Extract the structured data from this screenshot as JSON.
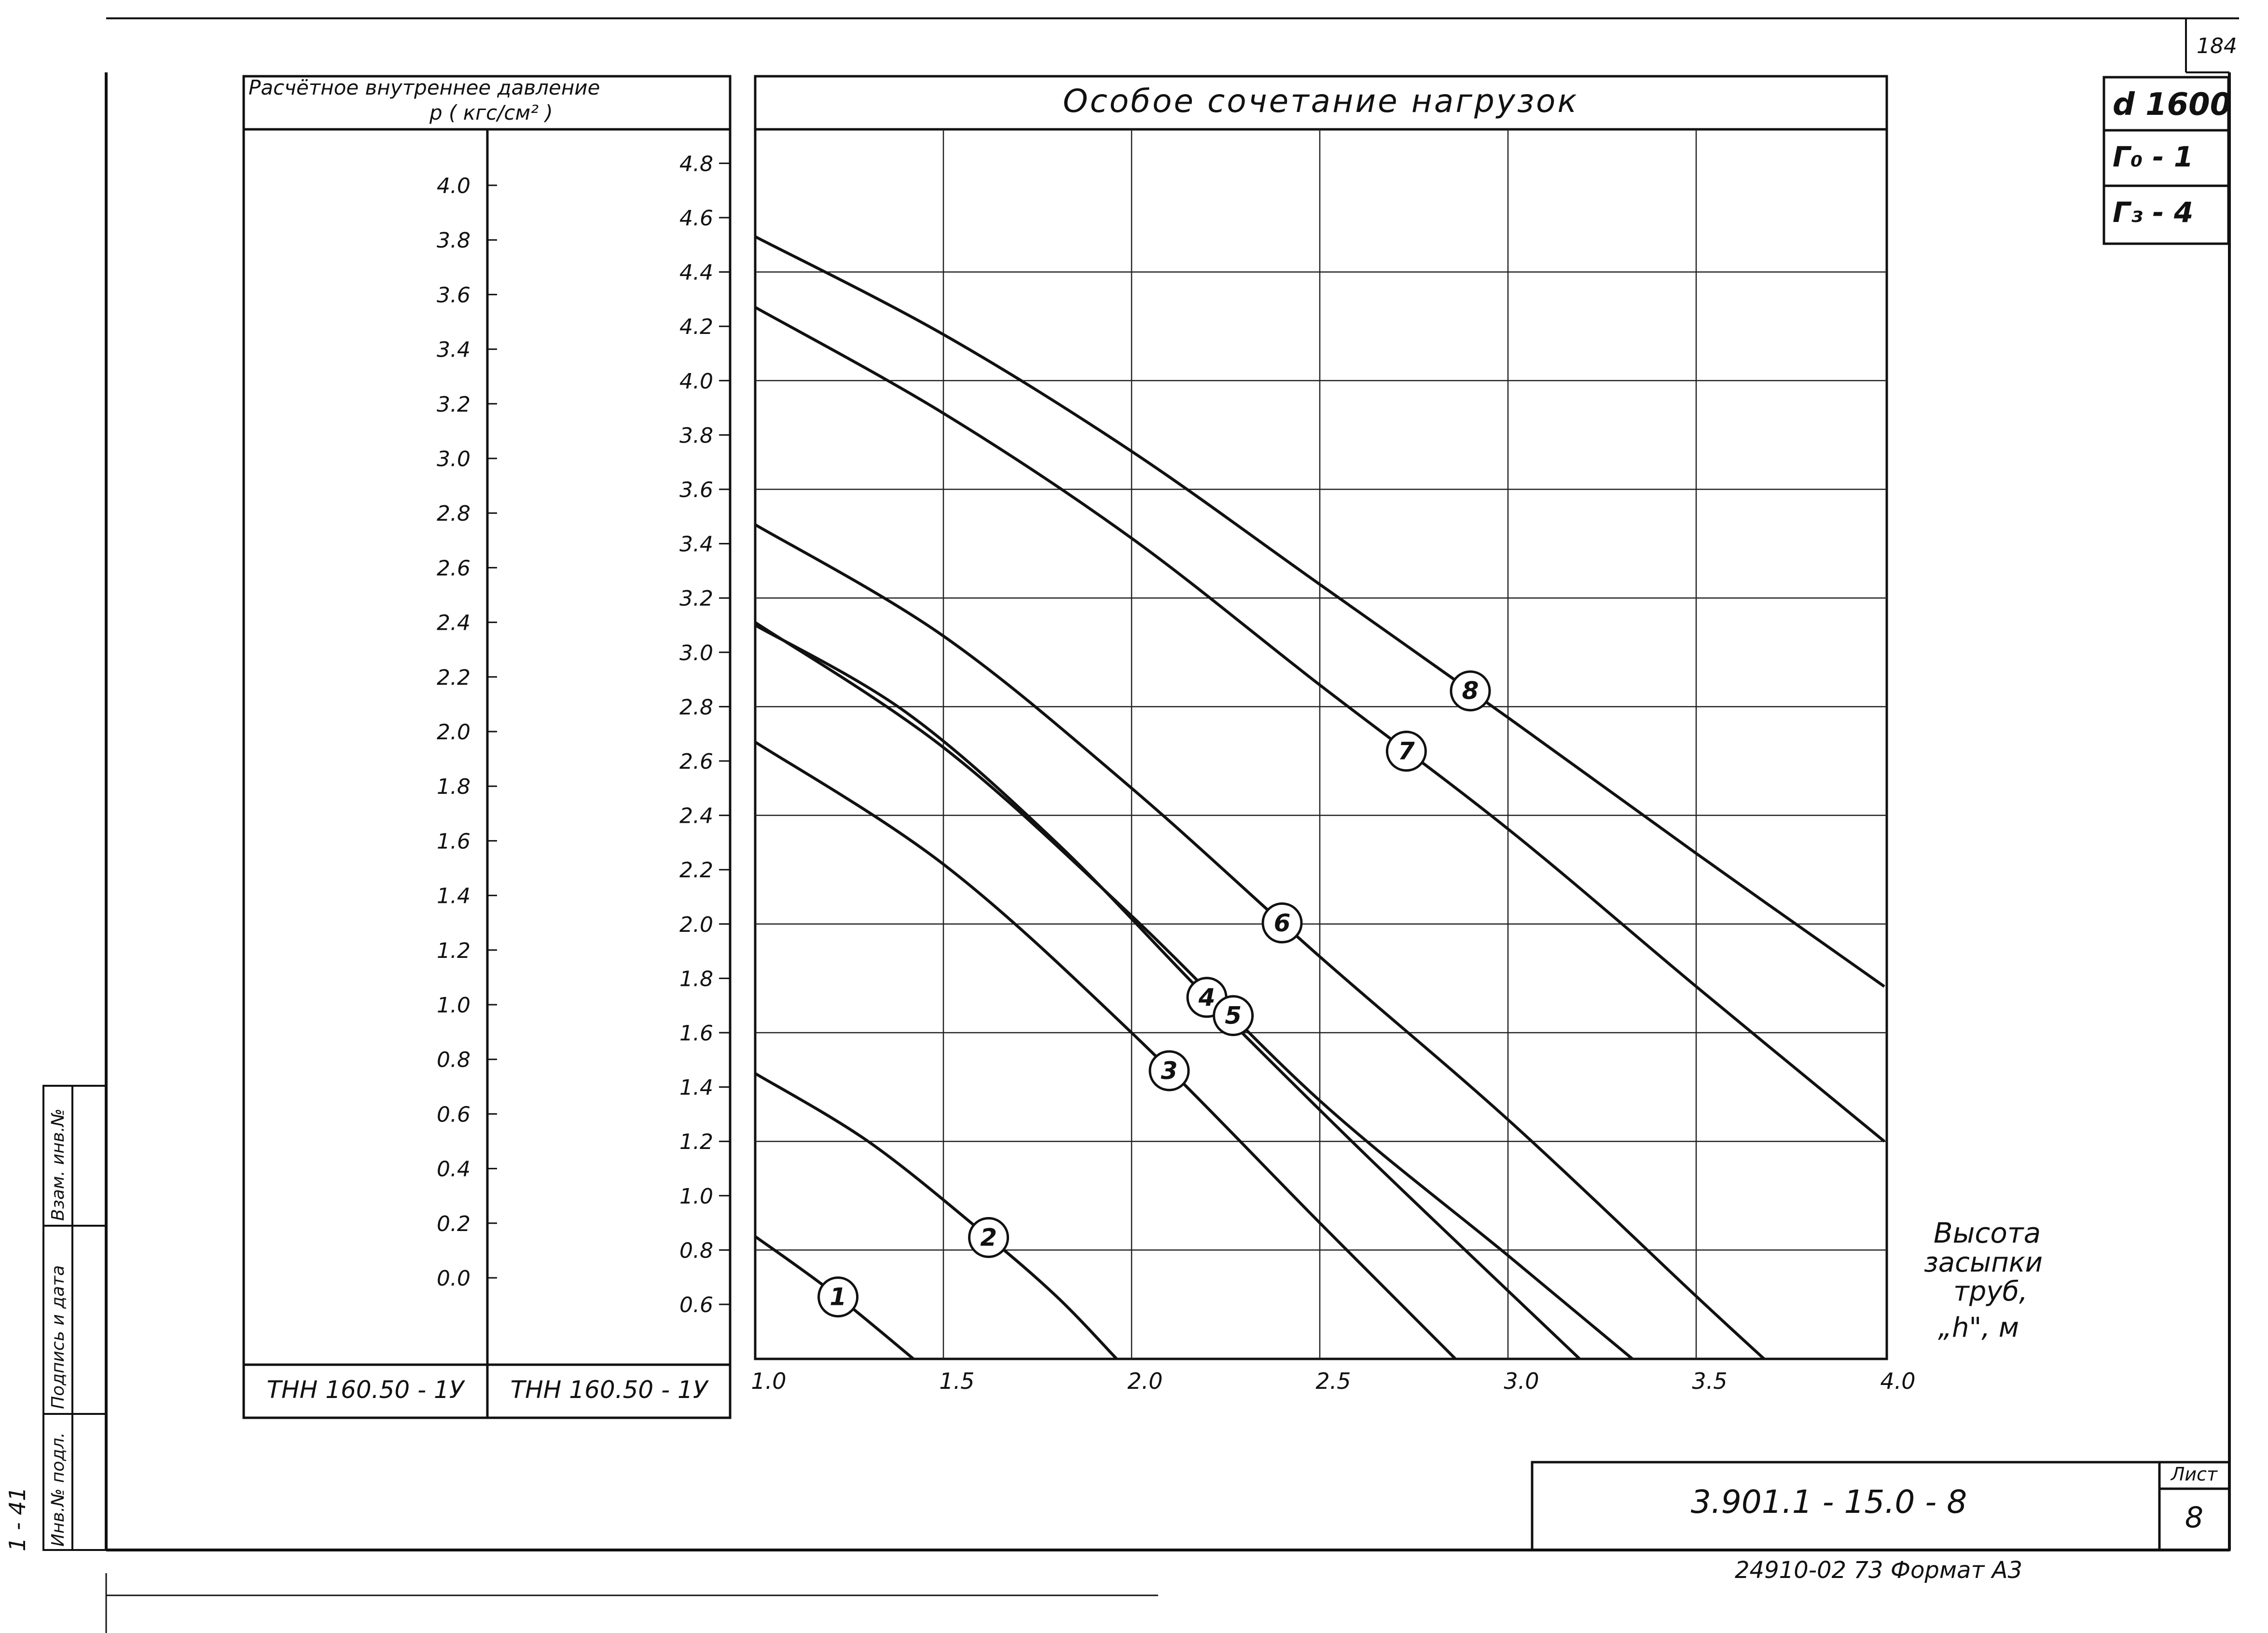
{
  "sheet": {
    "page_number": "184",
    "params": [
      "d 1600",
      "Г₀ - 1",
      "Г₃ - 4"
    ],
    "pressure_header": [
      "Расчётное внутреннее давление",
      "p ( кгс/см² )"
    ],
    "pipe_labels": [
      "ТНН 160.50 - 1У",
      "ТНН 160.50 - 1У"
    ],
    "x_axis_label": [
      "Высота",
      "засыпки",
      "труб,",
      "„h\", м"
    ],
    "doc_code": "3.901.1 - 15.0 - 8",
    "sheet_label": "Лист",
    "sheet_no": "8",
    "footer": "24910-02   73   Формат А3",
    "margin_number": "1 - 41",
    "margin_stamps": [
      "Инв.№ подл.",
      "Подпись и дата",
      "Взам. инв.№"
    ]
  },
  "chart_data": {
    "type": "line",
    "title": "Особое сочетание нагрузок",
    "xlabel": "Высота засыпки труб, „h\", м",
    "xlim": [
      1.0,
      4.0
    ],
    "x_ticks": [
      "1.0",
      "1.5",
      "2.0",
      "2.5",
      "3.0",
      "3.5",
      "4.0"
    ],
    "ylabel": "Расчётное внутреннее давление p (кгс/см²)",
    "ylim": [
      0.4,
      4.9
    ],
    "y_ticks_inner": [
      "0.6",
      "0.8",
      "1.0",
      "1.2",
      "1.4",
      "1.6",
      "1.8",
      "2.0",
      "2.2",
      "2.4",
      "2.6",
      "2.8",
      "3.0",
      "3.2",
      "3.4",
      "3.6",
      "3.8",
      "4.0",
      "4.2",
      "4.4",
      "4.6",
      "4.8"
    ],
    "y_ticks_outer": [
      "0.0",
      "0.2",
      "0.4",
      "0.6",
      "0.8",
      "1.0",
      "1.2",
      "1.4",
      "1.6",
      "1.8",
      "2.0",
      "2.2",
      "2.4",
      "2.6",
      "2.8",
      "3.0",
      "3.2",
      "3.4",
      "3.6",
      "3.8",
      "4.0"
    ],
    "grid": true,
    "series": [
      {
        "name": "1",
        "label_x": 1.22,
        "x": [
          1.0,
          1.2,
          1.42
        ],
        "y": [
          0.85,
          0.65,
          0.4
        ]
      },
      {
        "name": "2",
        "label_x": 1.62,
        "x": [
          1.0,
          1.3,
          1.6,
          1.8,
          1.96
        ],
        "y": [
          1.45,
          1.2,
          0.87,
          0.63,
          0.4
        ]
      },
      {
        "name": "3",
        "label_x": 2.1,
        "x": [
          1.0,
          1.5,
          2.0,
          2.5,
          2.86
        ],
        "y": [
          2.67,
          2.22,
          1.6,
          0.9,
          0.4
        ]
      },
      {
        "name": "4",
        "label_x": 2.2,
        "x": [
          1.0,
          1.4,
          1.8,
          2.2,
          2.6,
          3.0,
          3.19
        ],
        "y": [
          3.1,
          2.78,
          2.3,
          1.73,
          1.18,
          0.65,
          0.4
        ]
      },
      {
        "name": "5",
        "label_x": 2.27,
        "x": [
          1.0,
          1.5,
          2.0,
          2.5,
          3.0,
          3.33
        ],
        "y": [
          3.11,
          2.65,
          2.03,
          1.35,
          0.78,
          0.4
        ]
      },
      {
        "name": "6",
        "label_x": 2.4,
        "x": [
          1.0,
          1.5,
          2.0,
          2.5,
          3.0,
          3.5,
          3.68
        ],
        "y": [
          3.47,
          3.06,
          2.5,
          1.88,
          1.28,
          0.63,
          0.4
        ]
      },
      {
        "name": "7",
        "label_x": 2.73,
        "x": [
          1.0,
          1.5,
          2.0,
          2.5,
          3.0,
          3.5,
          4.0
        ],
        "y": [
          4.27,
          3.88,
          3.42,
          2.88,
          2.35,
          1.77,
          1.2
        ]
      },
      {
        "name": "8",
        "label_x": 2.9,
        "x": [
          1.0,
          1.5,
          2.0,
          2.5,
          3.0,
          3.5,
          4.0
        ],
        "y": [
          4.53,
          4.17,
          3.74,
          3.25,
          2.76,
          2.26,
          1.77
        ]
      }
    ]
  }
}
